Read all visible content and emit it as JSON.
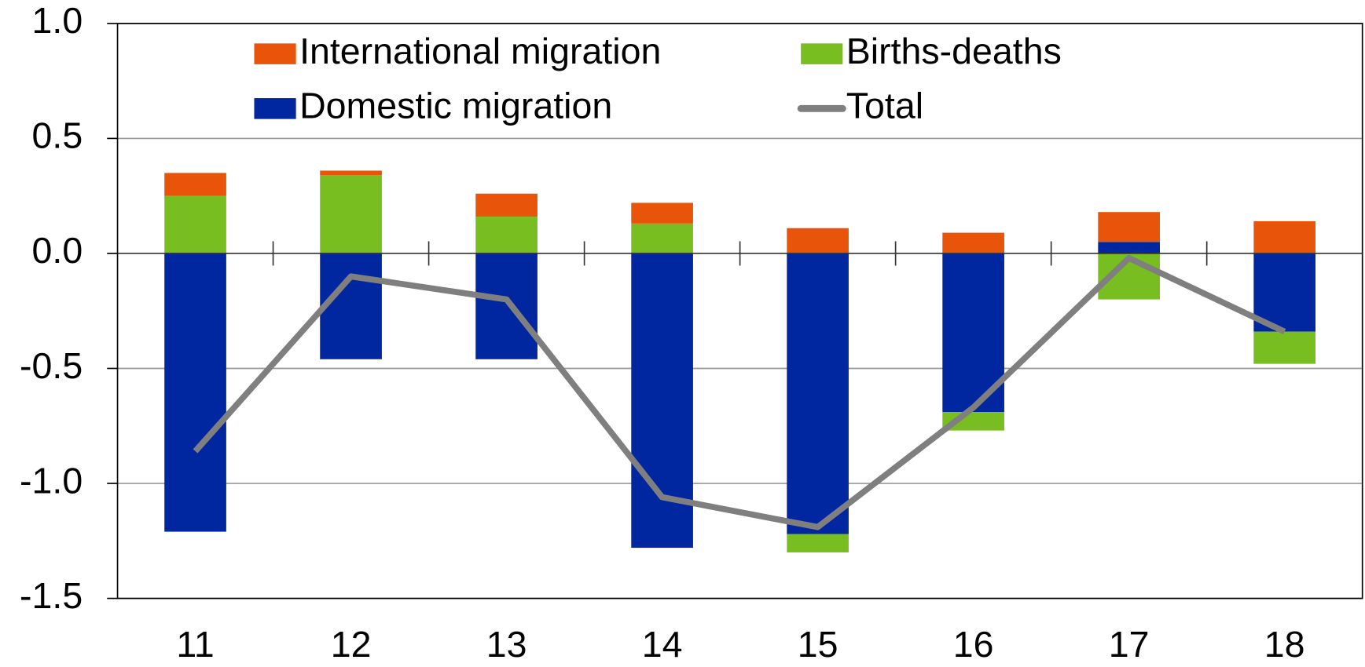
{
  "chart_data": {
    "type": "stacked-bar-line",
    "categories": [
      "11",
      "12",
      "13",
      "14",
      "15",
      "16",
      "17",
      "18"
    ],
    "series": [
      {
        "name": "Domestic migration",
        "color": "#0026a0",
        "type": "bar",
        "values": [
          -1.21,
          -0.46,
          -0.46,
          -1.28,
          -1.22,
          -0.69,
          0.05,
          -0.34
        ]
      },
      {
        "name": "Births-deaths",
        "color": "#78be20",
        "type": "bar",
        "values": [
          0.25,
          0.34,
          0.16,
          0.13,
          -0.08,
          -0.08,
          -0.2,
          -0.14
        ]
      },
      {
        "name": "International migration",
        "color": "#e8550a",
        "type": "bar",
        "values": [
          0.1,
          0.02,
          0.1,
          0.09,
          0.11,
          0.09,
          0.13,
          0.14
        ]
      },
      {
        "name": "Total",
        "color": "#7f7f7f",
        "type": "line",
        "values": [
          -0.86,
          -0.1,
          -0.2,
          -1.06,
          -1.19,
          -0.67,
          -0.02,
          -0.34
        ]
      }
    ],
    "ylim": [
      -1.5,
      1.0
    ],
    "yticks": [
      {
        "value": -1.5,
        "label": "-1.5"
      },
      {
        "value": -1.0,
        "label": "-1.0"
      },
      {
        "value": -0.5,
        "label": "-0.5"
      },
      {
        "value": 0,
        "label": "0.0"
      },
      {
        "value": 0.5,
        "label": "0.5"
      },
      {
        "value": 1.0,
        "label": "1.0"
      }
    ],
    "grid": true,
    "legend_order": [
      "International migration",
      "Births-deaths",
      "Domestic migration",
      "Total"
    ]
  }
}
